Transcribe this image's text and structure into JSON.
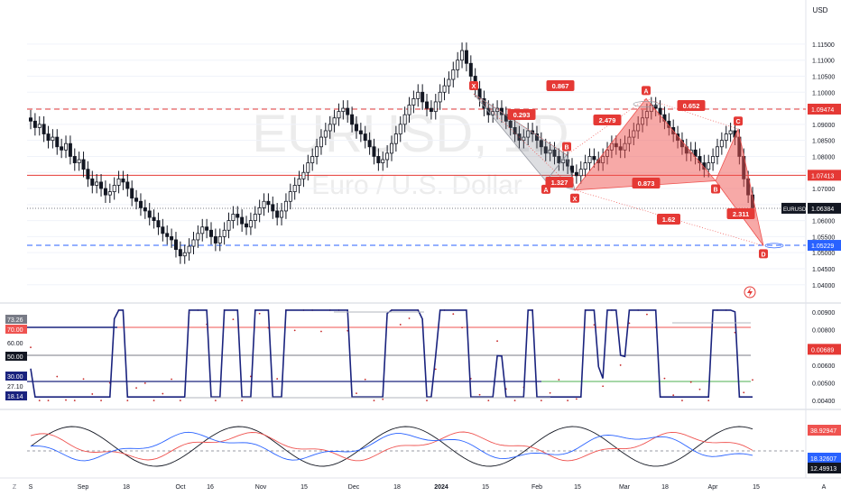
{
  "chart_data": {
    "type": "candlestick",
    "symbol": "EURUSD",
    "watermark_symbol": "EURUSD, 1D",
    "watermark_name": "Euro / U.S. Dollar",
    "currency": "USD",
    "price_ylim": [
      1.036,
      1.122
    ],
    "price_ticks": [
      "1.11500",
      "1.11000",
      "1.10500",
      "1.10000",
      "1.09500",
      "1.09000",
      "1.08500",
      "1.08000",
      "1.07500",
      "1.07000",
      "1.06500",
      "1.06000",
      "1.05500",
      "1.05000",
      "1.04500",
      "1.04000"
    ],
    "price_labels": [
      {
        "value": 1.09474,
        "text": "1.09474",
        "color": "#e53935"
      },
      {
        "value": 1.07413,
        "text": "1.07413",
        "color": "#e53935"
      },
      {
        "value": 1.06384,
        "text": "1.06384",
        "color": "#131722"
      },
      {
        "value": 1.05229,
        "text": "1.05229",
        "color": "#2962ff"
      }
    ],
    "symbol_tag": "EURUSD",
    "hlines": [
      {
        "value": 1.09474,
        "style": "dashed",
        "color": "#e53935"
      },
      {
        "value": 1.07413,
        "style": "solid",
        "color": "#e53935"
      },
      {
        "value": 1.06384,
        "style": "dotted",
        "color": "#787b86"
      },
      {
        "value": 1.05229,
        "style": "dashed",
        "color": "#2962ff"
      }
    ],
    "x_ticks": [
      "S",
      "Sep",
      "18",
      "Oct",
      "16",
      "Nov",
      "15",
      "Dec",
      "18",
      "2024",
      "15",
      "Feb",
      "15",
      "Mar",
      "18",
      "Apr",
      "15",
      "A"
    ],
    "candles_seed_path": [
      1.091,
      1.089,
      1.09,
      1.087,
      1.085,
      1.086,
      1.083,
      1.082,
      1.084,
      1.08,
      1.078,
      1.079,
      1.076,
      1.073,
      1.071,
      1.072,
      1.07,
      1.068,
      1.069,
      1.071,
      1.073,
      1.072,
      1.07,
      1.067,
      1.066,
      1.064,
      1.063,
      1.061,
      1.06,
      1.058,
      1.056,
      1.055,
      1.054,
      1.051,
      1.049,
      1.05,
      1.052,
      1.054,
      1.056,
      1.058,
      1.057,
      1.055,
      1.053,
      1.055,
      1.057,
      1.06,
      1.062,
      1.061,
      1.059,
      1.058,
      1.06,
      1.062,
      1.064,
      1.066,
      1.065,
      1.063,
      1.061,
      1.063,
      1.066,
      1.069,
      1.071,
      1.073,
      1.075,
      1.078,
      1.08,
      1.083,
      1.086,
      1.088,
      1.09,
      1.092,
      1.094,
      1.095,
      1.093,
      1.09,
      1.088,
      1.087,
      1.085,
      1.083,
      1.08,
      1.078,
      1.079,
      1.081,
      1.084,
      1.087,
      1.09,
      1.093,
      1.096,
      1.098,
      1.1,
      1.097,
      1.095,
      1.094,
      1.097,
      1.1,
      1.102,
      1.104,
      1.107,
      1.11,
      1.113,
      1.109,
      1.105,
      1.101,
      1.098,
      1.095,
      1.093,
      1.094,
      1.095,
      1.093,
      1.091,
      1.089,
      1.087,
      1.085,
      1.086,
      1.088,
      1.087,
      1.085,
      1.083,
      1.081,
      1.082,
      1.08,
      1.078,
      1.079,
      1.077,
      1.075,
      1.074,
      1.076,
      1.078,
      1.08,
      1.079,
      1.078,
      1.08,
      1.082,
      1.084,
      1.083,
      1.082,
      1.084,
      1.086,
      1.088,
      1.09,
      1.092,
      1.094,
      1.096,
      1.095,
      1.093,
      1.091,
      1.089,
      1.087,
      1.085,
      1.083,
      1.081,
      1.082,
      1.08,
      1.078,
      1.076,
      1.078,
      1.08,
      1.083,
      1.085,
      1.087,
      1.088,
      1.086,
      1.08,
      1.073,
      1.068,
      1.064
    ],
    "harmonic_points": [
      {
        "label": "X",
        "date_index": 0,
        "value": 1.0995
      },
      {
        "label": "A",
        "date_index": 1,
        "value": 1.0723
      },
      {
        "label": "B",
        "date_index": 2,
        "value": 1.0805
      },
      {
        "label": "X",
        "date_index": 3,
        "value": 1.0695
      },
      {
        "label": "A",
        "date_index": 4,
        "value": 1.098
      },
      {
        "label": "B",
        "date_index": 5,
        "value": 1.0724
      },
      {
        "label": "C",
        "date_index": 6,
        "value": 1.0885
      },
      {
        "label": "D",
        "date_index": 7,
        "value": 1.0522
      }
    ],
    "ratios": [
      "0.867",
      "0.293",
      "2.479",
      "1.327",
      "0.873",
      "0.652",
      "2.311",
      "1.62"
    ],
    "indicator1": {
      "ylim": [
        0.0037,
        0.0093
      ],
      "right_ticks": [
        "0.00900",
        "0.00800",
        "0.00689",
        "0.00600",
        "0.00500",
        "0.00400"
      ],
      "current_value": "0.00689",
      "left_labels": [
        "73.26",
        "70.00",
        "60.00",
        "50.00",
        "30.00",
        "27.10",
        "18.14"
      ]
    },
    "indicator2": {
      "right_labels": [
        "38.92947",
        "18.32607",
        "12.49913"
      ]
    }
  },
  "toolbar": {
    "lightning_icon": "lightning-icon"
  },
  "colors": {
    "up": "#26a69a",
    "down": "#131722",
    "pattern_fill": "#ef5350",
    "pattern_label": "#e53935",
    "rsi_line": "#1a237e",
    "dots": "#c62828",
    "grid": "#f0f3fa"
  }
}
